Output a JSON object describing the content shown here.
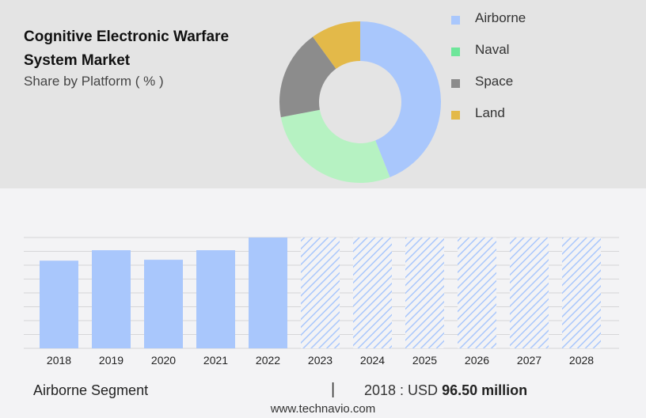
{
  "header": {
    "title": "Cognitive Electronic Warfare System Market",
    "subtitle": "Share by Platform ( % )"
  },
  "legend": [
    {
      "label": "Airborne",
      "color": "#a9c7fc"
    },
    {
      "label": "Naval",
      "color": "#6ee69a"
    },
    {
      "label": "Space",
      "color": "#8c8c8c"
    },
    {
      "label": "Land",
      "color": "#e3b949"
    }
  ],
  "chart_data": [
    {
      "type": "pie",
      "subtype": "donut",
      "labels": [
        "Airborne",
        "Naval",
        "Space",
        "Land"
      ],
      "values": [
        44,
        28,
        18,
        10
      ],
      "colors": [
        "#a9c7fc",
        "#b6f2c2",
        "#8c8c8c",
        "#e3b949"
      ]
    },
    {
      "type": "bar",
      "categories": [
        "2018",
        "2019",
        "2020",
        "2021",
        "2022",
        "2023",
        "2024",
        "2025",
        "2026",
        "2027",
        "2028"
      ],
      "values": [
        96.5,
        108,
        97.5,
        108,
        122,
        122,
        122,
        122,
        122,
        122,
        122
      ],
      "forecast_from_index": 5,
      "ylim": [
        0,
        122
      ],
      "grid": true,
      "bar_color": "#a9c7fc",
      "forecast_pattern": "diagonal-hatch"
    }
  ],
  "footer": {
    "segment": "Airborne Segment",
    "divider": "|",
    "stat_prefix": "2018 : USD",
    "stat_value": "96.50 million",
    "url": "www.technavio.com"
  }
}
